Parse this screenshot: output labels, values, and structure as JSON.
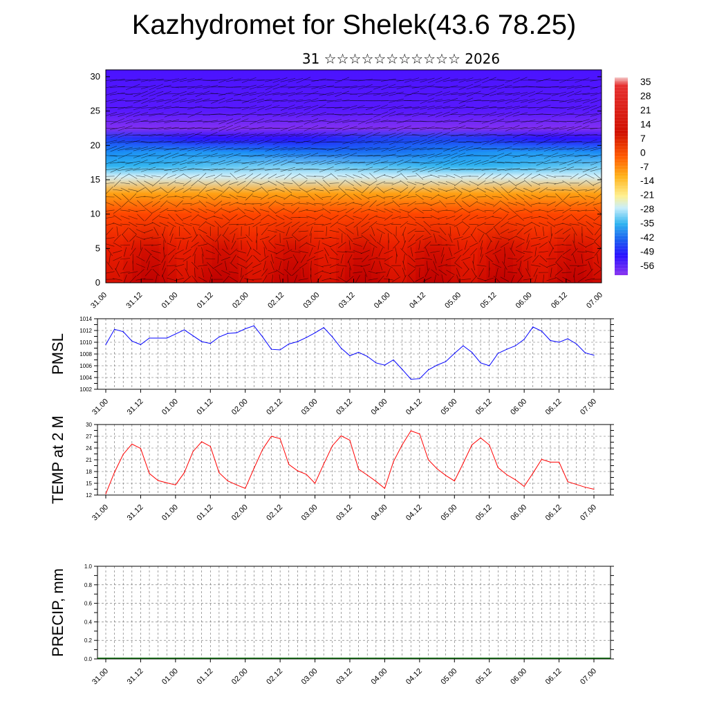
{
  "title": "Kazhydromet for Shelek(43.6 78.25)",
  "subtitle": "31 ☆☆☆☆☆☆☆☆☆☆☆ 2026",
  "time_labels": [
    "31.00",
    "31.12",
    "01.00",
    "01.12",
    "02.00",
    "02.12",
    "03.00",
    "03.12",
    "04.00",
    "04.12",
    "05.00",
    "05.12",
    "06.00",
    "06.12",
    "07.00"
  ],
  "chart_data": [
    {
      "type": "heatmap",
      "name": "temperature-wind-cross-section",
      "y_ticks": [
        0,
        5,
        10,
        15,
        20,
        25,
        30
      ],
      "ylim": [
        0,
        31
      ],
      "colorbar": {
        "labels": [
          "35",
          "28",
          "21",
          "14",
          "7",
          "0",
          "-7",
          "-14",
          "-21",
          "-28",
          "-35",
          "-42",
          "-49",
          "-56"
        ],
        "range": [
          -63,
          39
        ]
      },
      "profile_levels": [
        0,
        5,
        10,
        13,
        15.5,
        17,
        19,
        21,
        22.5,
        25,
        31
      ],
      "profile_temps": [
        30,
        24,
        14,
        2,
        -14,
        -25,
        -36,
        -47,
        -62,
        -57,
        -55
      ],
      "colors": {
        "hot": "#c00000",
        "cold": "#3300ff",
        "top": "#7a2df0"
      }
    },
    {
      "type": "line",
      "ylabel": "PMSL",
      "ylim": [
        1002,
        1014
      ],
      "y_ticks": [
        1002,
        1004,
        1006,
        1008,
        1010,
        1012,
        1014
      ],
      "x_hours": [
        0,
        3,
        6,
        9,
        12,
        15,
        18,
        21,
        24,
        27,
        30,
        33,
        36,
        39,
        42,
        45,
        48,
        51,
        54,
        57,
        60,
        63,
        66,
        69,
        72,
        75,
        78,
        81,
        84,
        87,
        90,
        93,
        96,
        99,
        102,
        105,
        108,
        111,
        114,
        117,
        120,
        123,
        126,
        129,
        132,
        135,
        138,
        141,
        144,
        147,
        150,
        153,
        156,
        159,
        162,
        165,
        168
      ],
      "values": [
        1009.6,
        1012.2,
        1011.8,
        1010.2,
        1009.6,
        1010.7,
        1010.7,
        1010.7,
        1011.4,
        1012.1,
        1011.1,
        1010.1,
        1009.8,
        1010.9,
        1011.5,
        1011.6,
        1012.3,
        1012.8,
        1010.9,
        1008.8,
        1008.7,
        1009.7,
        1010.1,
        1010.8,
        1011.6,
        1012.5,
        1010.9,
        1009.0,
        1007.7,
        1008.3,
        1007.6,
        1006.5,
        1006.1,
        1007.0,
        1005.4,
        1003.7,
        1003.8,
        1005.3,
        1006.1,
        1006.7,
        1008.1,
        1009.4,
        1008.3,
        1006.5,
        1006.0,
        1008.1,
        1008.8,
        1009.4,
        1010.5,
        1012.6,
        1011.9,
        1010.3,
        1010.0,
        1010.6,
        1009.7,
        1008.2,
        1007.8
      ],
      "color": "#0000ff"
    },
    {
      "type": "line",
      "ylabel": "TEMP at 2 M",
      "ylim": [
        12,
        30
      ],
      "y_ticks": [
        12,
        15,
        18,
        21,
        24,
        27,
        30
      ],
      "x_hours": [
        0,
        3,
        6,
        9,
        12,
        15,
        18,
        21,
        24,
        27,
        30,
        33,
        36,
        39,
        42,
        45,
        48,
        51,
        54,
        57,
        60,
        63,
        66,
        69,
        72,
        75,
        78,
        81,
        84,
        87,
        90,
        93,
        96,
        99,
        102,
        105,
        108,
        111,
        114,
        117,
        120,
        123,
        126,
        129,
        132,
        135,
        138,
        141,
        144,
        147,
        150,
        153,
        156,
        159,
        162,
        165,
        168
      ],
      "values": [
        12.3,
        17.8,
        22.4,
        25.0,
        23.9,
        17.5,
        15.7,
        15.1,
        14.6,
        17.7,
        23.1,
        25.6,
        24.4,
        17.7,
        15.6,
        14.6,
        13.7,
        18.8,
        23.7,
        27.0,
        26.4,
        19.8,
        18.2,
        17.3,
        15.0,
        19.9,
        24.6,
        27.1,
        26.0,
        18.6,
        17.1,
        15.5,
        13.7,
        20.5,
        24.8,
        28.4,
        27.6,
        21.0,
        18.7,
        17.0,
        15.6,
        20.1,
        24.8,
        26.6,
        24.8,
        19.0,
        17.2,
        15.9,
        14.2,
        17.6,
        21.1,
        20.4,
        20.4,
        15.4,
        14.7,
        14.0,
        13.5
      ],
      "color": "#ff0000"
    },
    {
      "type": "line",
      "ylabel": "PRECIP, mm",
      "ylim": [
        0,
        1
      ],
      "y_ticks": [
        "0.0",
        "0.2",
        "0.4",
        "0.6",
        "0.8",
        "1.0"
      ],
      "values_all": 0,
      "color": "#006400"
    }
  ]
}
